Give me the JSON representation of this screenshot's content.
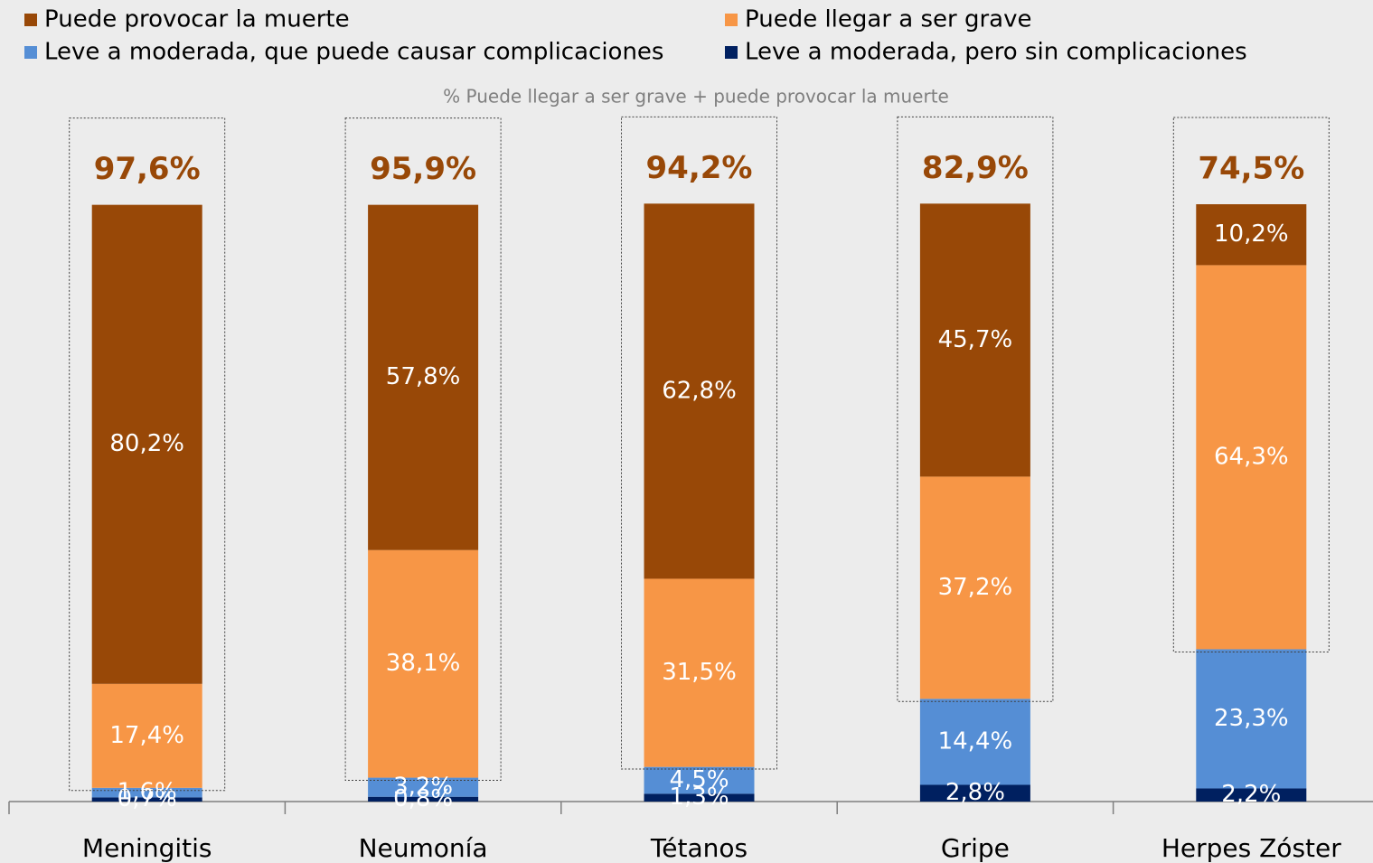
{
  "chart_data": {
    "type": "stacked_bar",
    "annotation": "% Puede llegar a ser grave + puede provocar la muerte",
    "categories": [
      "Meningitis",
      "Neumonía",
      "Tétanos",
      "Gripe",
      "Herpes Zóster"
    ],
    "series": [
      {
        "name": "Puede provocar la muerte",
        "color": "#984807",
        "values": [
          80.2,
          57.8,
          62.8,
          45.7,
          10.2
        ],
        "value_labels": [
          "80,2%",
          "57,8%",
          "62,8%",
          "45,7%",
          "10,2%"
        ]
      },
      {
        "name": "Puede llegar a ser grave",
        "color": "#f79646",
        "values": [
          17.4,
          38.1,
          31.5,
          37.2,
          64.3
        ],
        "value_labels": [
          "17,4%",
          "38,1%",
          "31,5%",
          "37,2%",
          "64,3%"
        ]
      },
      {
        "name": "Leve a moderada, que puede causar complicaciones",
        "color": "#558ed5",
        "values": [
          1.6,
          3.2,
          4.5,
          14.4,
          23.3
        ],
        "value_labels": [
          "1,6%",
          "3,2%",
          "4,5%",
          "14,4%",
          "23,3%"
        ]
      },
      {
        "name": "Leve a moderada, pero sin complicaciones",
        "color": "#002060",
        "values": [
          0.7,
          0.8,
          1.3,
          2.8,
          2.2
        ],
        "value_labels": [
          "0,7%",
          "0,8%",
          "1,3%",
          "2,8%",
          "2,2%"
        ]
      }
    ],
    "totals": {
      "color": "#984807",
      "values": [
        97.6,
        95.9,
        94.2,
        82.9,
        74.5
      ],
      "value_labels": [
        "97,6%",
        "95,9%",
        "94,2%",
        "82,9%",
        "74,5%"
      ]
    },
    "ylim": [
      0,
      100
    ]
  }
}
